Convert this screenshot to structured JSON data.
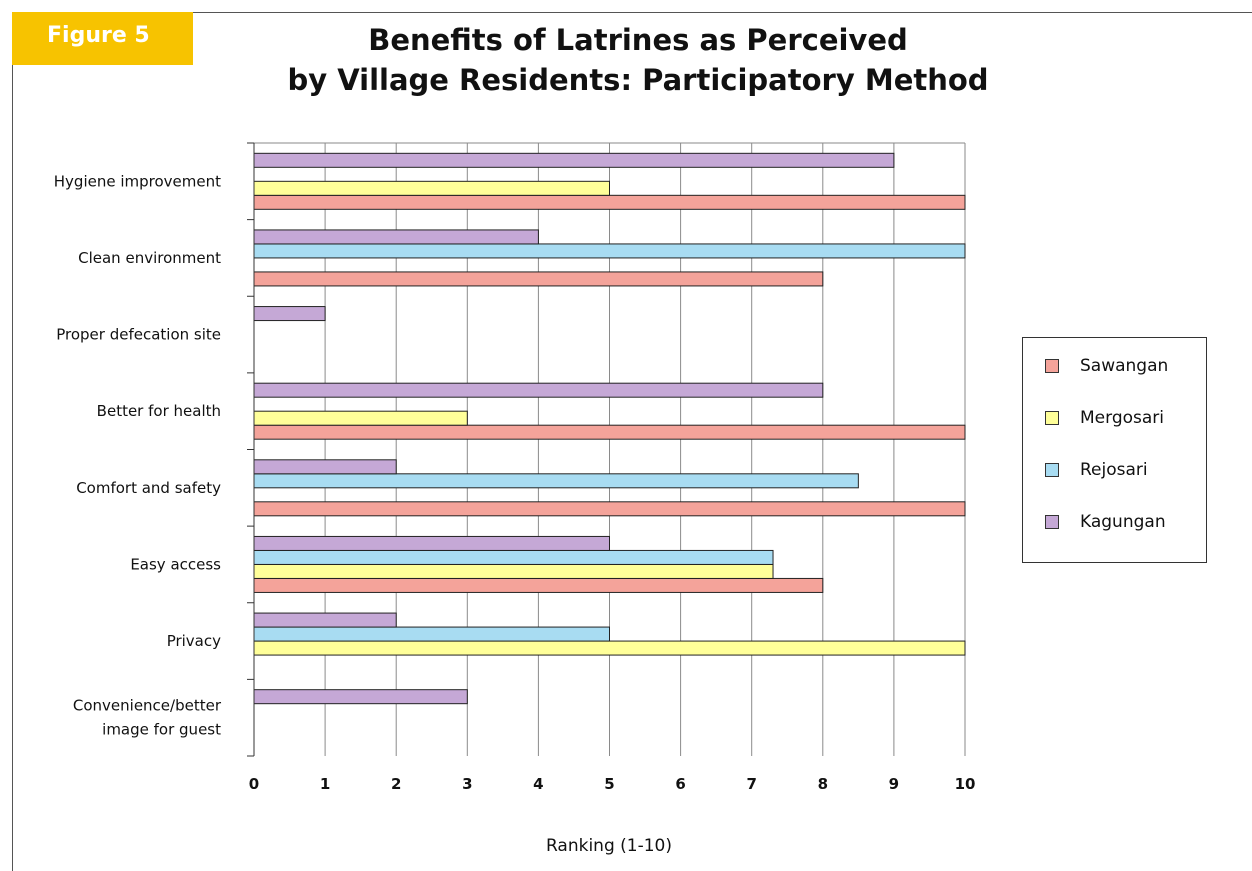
{
  "badge": {
    "label": "Figure 5"
  },
  "chart_data": {
    "type": "bar",
    "orientation": "horizontal",
    "title_line1": "Benefits of Latrines as Perceived",
    "title_line2": "by Village Residents: Participatory Method",
    "xlabel": "Ranking (1-10)",
    "ylabel": "",
    "xlim": [
      0,
      10
    ],
    "xticks": [
      0,
      1,
      2,
      3,
      4,
      5,
      6,
      7,
      8,
      9,
      10
    ],
    "grid": true,
    "legend_position": "right",
    "categories": [
      [
        "Hygiene improvement"
      ],
      [
        "Clean environment"
      ],
      [
        "Proper defecation site"
      ],
      [
        "Better for health"
      ],
      [
        "Comfort and safety"
      ],
      [
        "Easy access"
      ],
      [
        "Privacy"
      ],
      [
        "Convenience/better",
        "image for guest"
      ]
    ],
    "series": [
      {
        "name": "Sawangan",
        "color": "#f4a39a",
        "values": [
          10,
          8,
          null,
          10,
          10,
          8,
          null,
          null
        ]
      },
      {
        "name": "Mergosari",
        "color": "#ffff99",
        "values": [
          5,
          null,
          null,
          3,
          null,
          7.3,
          10,
          null
        ]
      },
      {
        "name": "Rejosari",
        "color": "#a8dcf2",
        "values": [
          null,
          10,
          null,
          null,
          8.5,
          7.3,
          5,
          null
        ]
      },
      {
        "name": "Kagungan",
        "color": "#c5a8d6",
        "values": [
          9,
          4,
          1,
          8,
          2,
          5,
          2,
          3
        ]
      }
    ]
  }
}
